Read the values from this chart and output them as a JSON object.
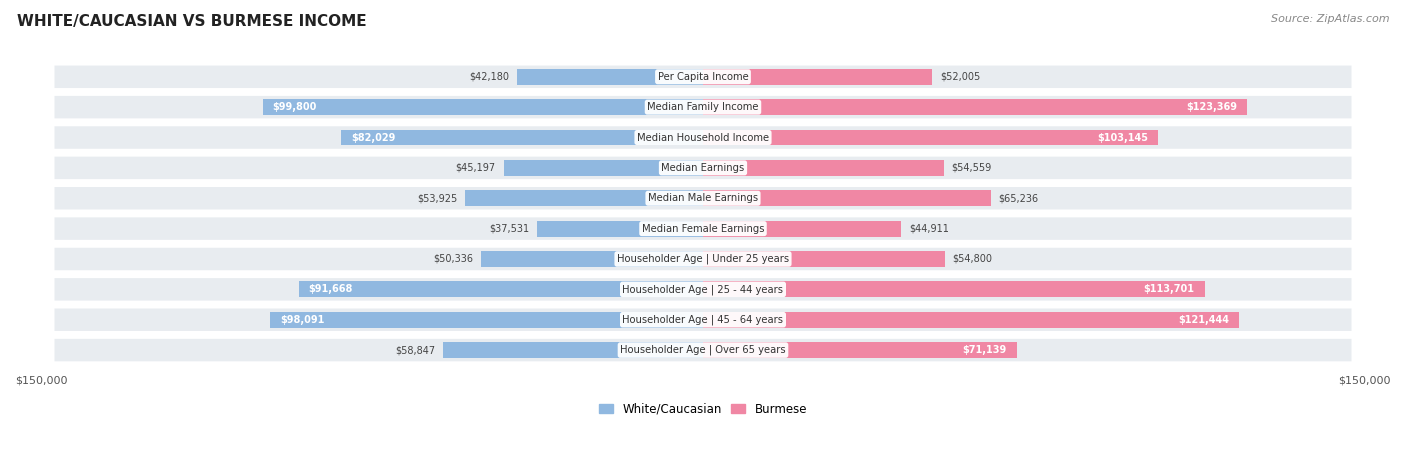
{
  "title": "WHITE/CAUCASIAN VS BURMESE INCOME",
  "source": "Source: ZipAtlas.com",
  "categories": [
    "Per Capita Income",
    "Median Family Income",
    "Median Household Income",
    "Median Earnings",
    "Median Male Earnings",
    "Median Female Earnings",
    "Householder Age | Under 25 years",
    "Householder Age | 25 - 44 years",
    "Householder Age | 45 - 64 years",
    "Householder Age | Over 65 years"
  ],
  "white_values": [
    42180,
    99800,
    82029,
    45197,
    53925,
    37531,
    50336,
    91668,
    98091,
    58847
  ],
  "burmese_values": [
    52005,
    123369,
    103145,
    54559,
    65236,
    44911,
    54800,
    113701,
    121444,
    71139
  ],
  "white_color": "#90b8e0",
  "burmese_color": "#f087a4",
  "white_label": "White/Caucasian",
  "burmese_label": "Burmese",
  "axis_max": 150000,
  "bg_color": "#ffffff",
  "row_bg_color": "#e8ecf0",
  "label_text_color": "#444444",
  "title_color": "#222222",
  "source_color": "#888888"
}
